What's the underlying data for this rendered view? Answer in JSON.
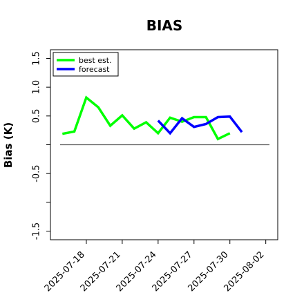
{
  "chart_data": {
    "type": "line",
    "title": "BIAS",
    "ylabel": "Bias (K)",
    "xlabel": "",
    "ylim": [
      -1.65,
      1.65
    ],
    "yticks": [
      -1.5,
      -1.0,
      -0.5,
      0.0,
      0.5,
      1.0,
      1.5
    ],
    "ytick_labels": [
      "-1.5",
      "",
      "-0.5",
      "",
      "0.5",
      "1.0",
      "1.5"
    ],
    "xlim": [
      "2025-07-15",
      "2025-08-03"
    ],
    "xticks": [
      "2025-07-18",
      "2025-07-21",
      "2025-07-24",
      "2025-07-27",
      "2025-07-30",
      "2025-08-02"
    ],
    "xtick_colors": [
      "#000000",
      "#000000",
      "#228b22",
      "#000000",
      "#000000",
      "#000000"
    ],
    "reference_line": 0.0,
    "reference_color": "#555555",
    "grid": false,
    "legend_position": "top-left",
    "series": [
      {
        "name": "best est.",
        "color": "#00ff00",
        "x": [
          "2025-07-16",
          "2025-07-17",
          "2025-07-18",
          "2025-07-19",
          "2025-07-20",
          "2025-07-21",
          "2025-07-22",
          "2025-07-23",
          "2025-07-24",
          "2025-07-25",
          "2025-07-26",
          "2025-07-27",
          "2025-07-28",
          "2025-07-29",
          "2025-07-30",
          "2025-07-31"
        ],
        "values": [
          0.19,
          0.23,
          0.82,
          0.65,
          0.33,
          0.51,
          0.28,
          0.39,
          0.2,
          0.47,
          0.4,
          0.48,
          0.48,
          0.1,
          0.2,
          null
        ]
      },
      {
        "name": "forecast",
        "color": "#0000ff",
        "x": [
          "2025-07-24",
          "2025-07-25",
          "2025-07-26",
          "2025-07-27",
          "2025-07-28",
          "2025-07-29",
          "2025-07-30",
          "2025-07-31"
        ],
        "values": [
          0.42,
          0.2,
          0.46,
          0.31,
          0.36,
          0.48,
          0.49,
          0.22
        ]
      }
    ]
  }
}
